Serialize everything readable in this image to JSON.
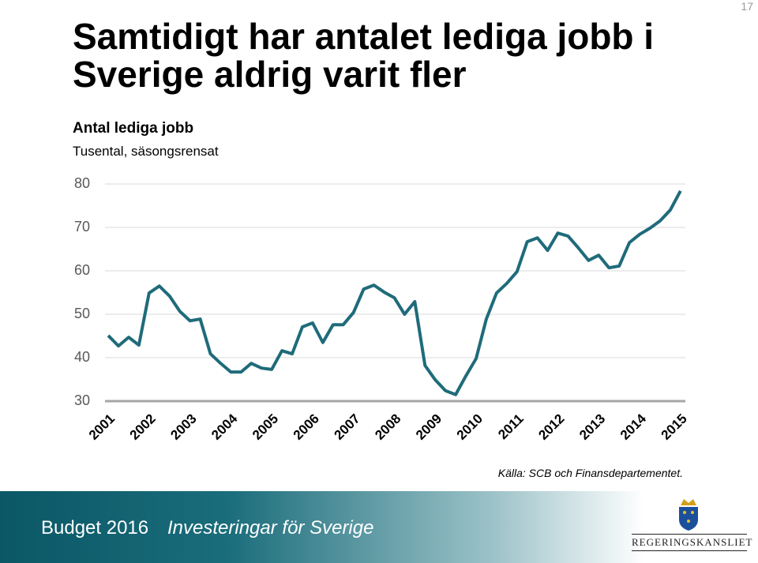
{
  "page_number": "17",
  "chart_data": {
    "type": "line",
    "title": "Samtidigt har antalet lediga jobb i Sverige aldrig varit fler",
    "subtitle": "Antal lediga jobb",
    "unit_label": "Tusental, säsongsrensat",
    "x": [
      2001,
      2001.25,
      2001.5,
      2001.75,
      2002,
      2002.25,
      2002.5,
      2002.75,
      2003,
      2003.25,
      2003.5,
      2003.75,
      2004,
      2004.25,
      2004.5,
      2004.75,
      2005,
      2005.25,
      2005.5,
      2005.75,
      2006,
      2006.25,
      2006.5,
      2006.75,
      2007,
      2007.25,
      2007.5,
      2007.75,
      2008,
      2008.25,
      2008.5,
      2008.75,
      2009,
      2009.25,
      2009.5,
      2009.75,
      2010,
      2010.25,
      2010.5,
      2010.75,
      2011,
      2011.25,
      2011.5,
      2011.75,
      2012,
      2012.25,
      2012.5,
      2012.75,
      2013,
      2013.25,
      2013.5,
      2013.75,
      2014,
      2014.25,
      2014.5,
      2014.75,
      2015
    ],
    "series": [
      {
        "name": "Antal lediga jobb",
        "color": "#1f6b7a",
        "values": [
          45.1,
          42.7,
          44.7,
          42.9,
          54.9,
          56.5,
          54.2,
          50.7,
          48.5,
          48.9,
          40.9,
          38.7,
          36.7,
          36.7,
          38.7,
          37.6,
          37.3,
          41.6,
          40.9,
          47.1,
          48.0,
          43.5,
          47.6,
          47.6,
          50.4,
          55.8,
          56.7,
          55.1,
          53.8,
          50.0,
          52.9,
          38.2,
          34.9,
          32.4,
          31.5,
          35.8,
          39.8,
          48.9,
          54.9,
          57.1,
          59.8,
          66.7,
          67.6,
          64.7,
          68.7,
          68.0,
          65.3,
          62.4,
          63.6,
          60.7,
          61.1,
          66.5,
          68.4,
          69.8,
          71.5,
          74.0,
          78.4
        ]
      }
    ],
    "xlim": [
      2000.96,
      2015.1
    ],
    "xticks": [
      2001,
      2002,
      2003,
      2004,
      2005,
      2006,
      2007,
      2008,
      2009,
      2010,
      2011,
      2012,
      2013,
      2014,
      2015
    ],
    "ylim": [
      30,
      80
    ],
    "yticks": [
      30,
      40,
      50,
      60,
      70,
      80
    ],
    "grid": true
  },
  "source": {
    "label": "Källa",
    "text": ": SCB och Finansdepartementet."
  },
  "footer": {
    "budget": "Budget 2016",
    "tagline": "Investeringar för Sverige",
    "logo": "REGERINGSKANSLIET"
  }
}
